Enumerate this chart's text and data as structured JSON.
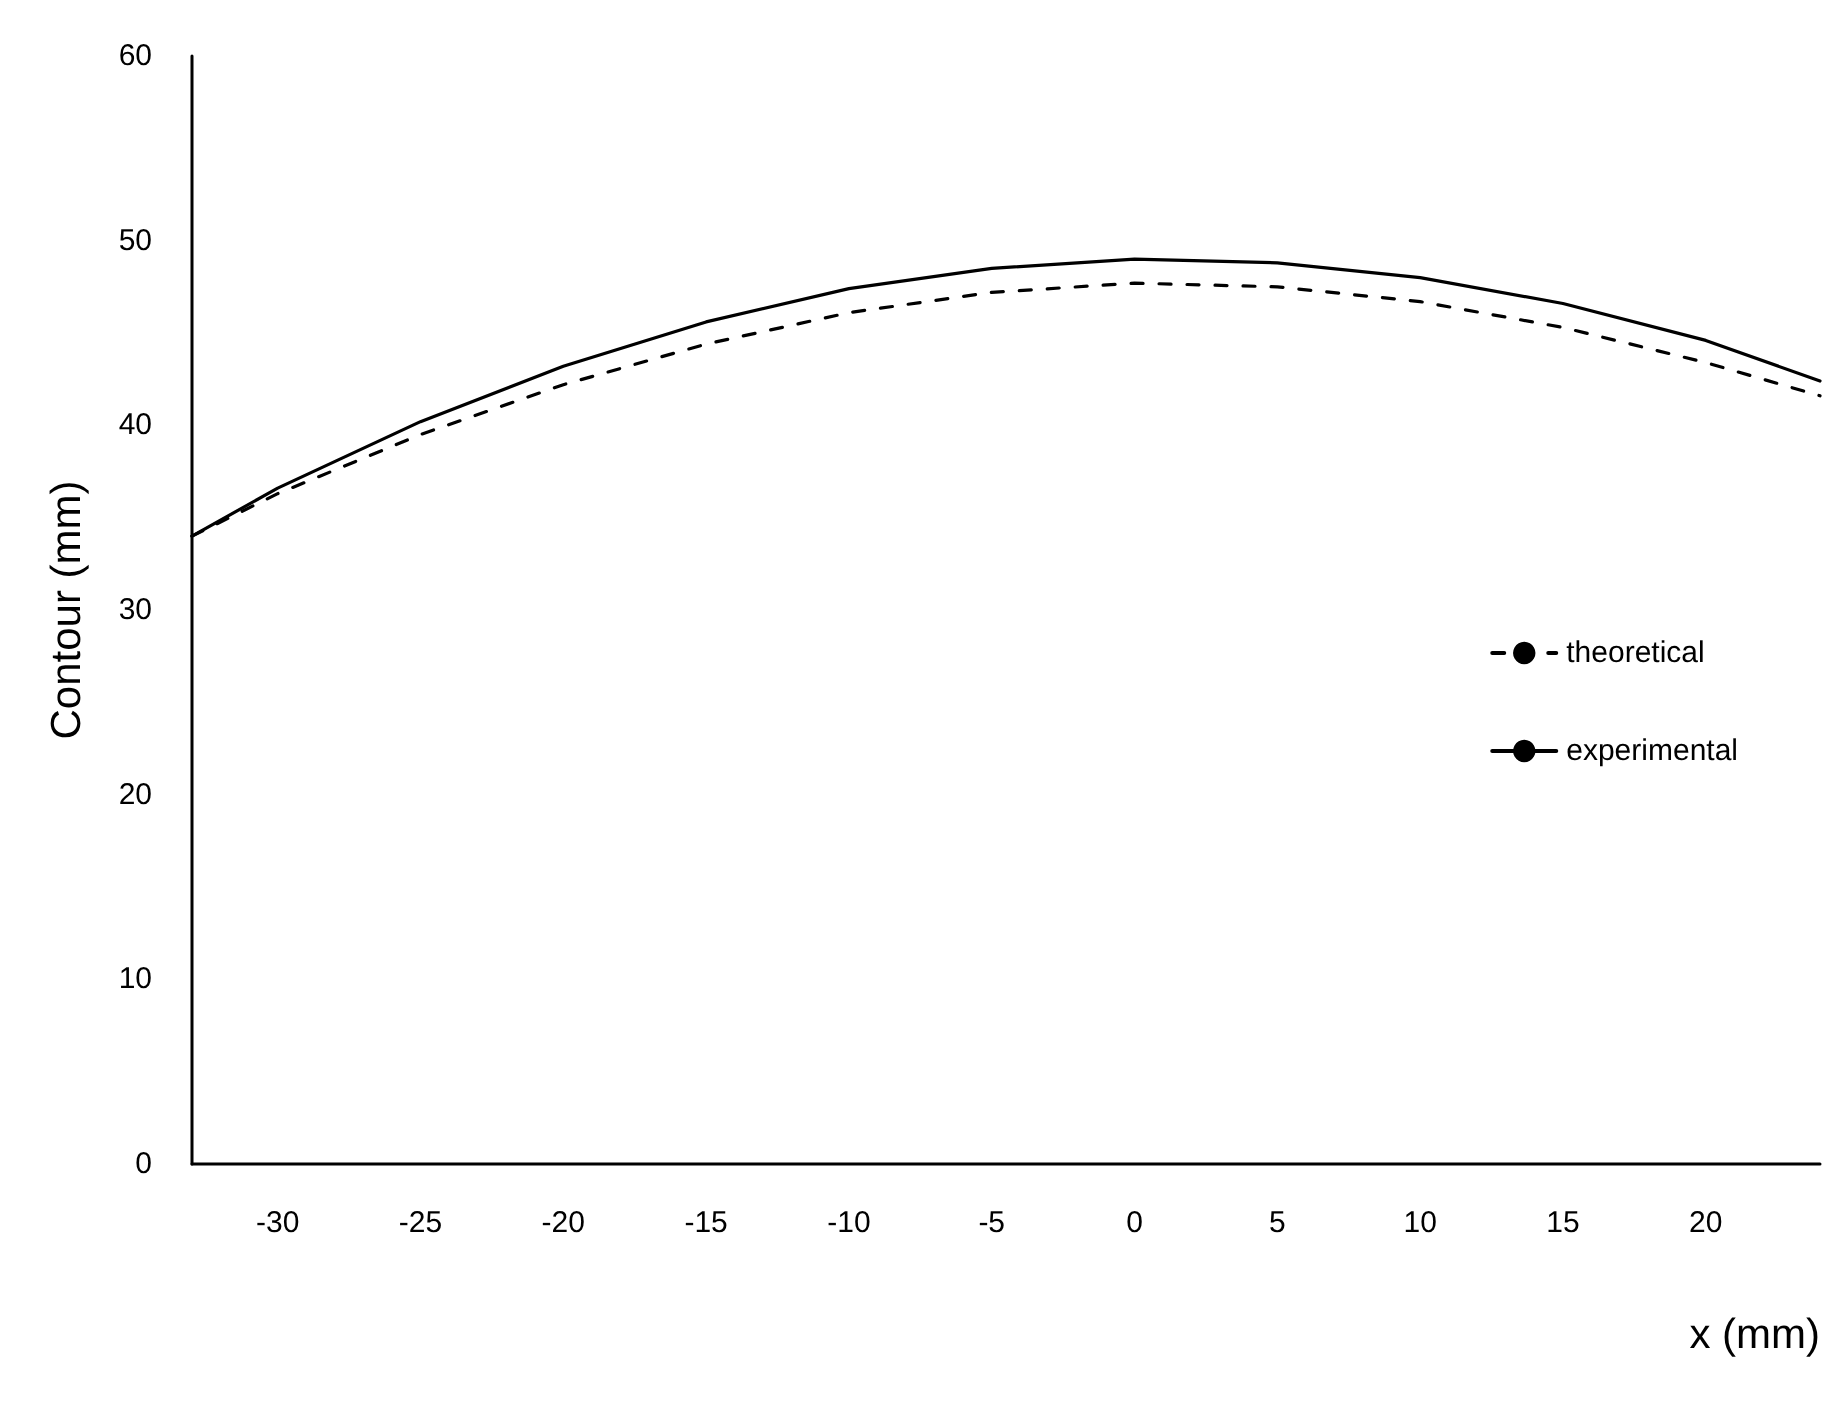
{
  "chart_data": {
    "type": "line",
    "xlabel": "x (mm)",
    "ylabel": "Contour (mm)",
    "xlim": [
      -33,
      24
    ],
    "xticks": [
      -30,
      -25,
      -20,
      -15,
      -10,
      -5,
      0,
      5,
      10,
      15,
      20
    ],
    "ylim": [
      0,
      60
    ],
    "yticks": [
      0,
      10,
      20,
      30,
      40,
      50,
      60
    ],
    "grid": false,
    "legend": "right",
    "marker": "none",
    "series": [
      {
        "name": "theoretical",
        "color": "#000000",
        "line_style": "dashed",
        "x": [
          -33,
          -30,
          -25,
          -20,
          -15,
          -10,
          -5,
          0,
          5,
          10,
          15,
          20,
          24
        ],
        "values": [
          34,
          36.3,
          39.5,
          42.2,
          44.4,
          46.1,
          47.2,
          47.7,
          47.5,
          46.7,
          45.3,
          43.4,
          41.6
        ]
      },
      {
        "name": "experimental",
        "color": "#000000",
        "line_style": "solid",
        "x": [
          -33,
          -30,
          -25,
          -20,
          -15,
          -10,
          -5,
          0,
          5,
          10,
          15,
          20,
          24
        ],
        "values": [
          34,
          36.6,
          40.2,
          43.2,
          45.6,
          47.4,
          48.5,
          49,
          48.8,
          48,
          46.6,
          44.6,
          42.4
        ]
      }
    ]
  }
}
